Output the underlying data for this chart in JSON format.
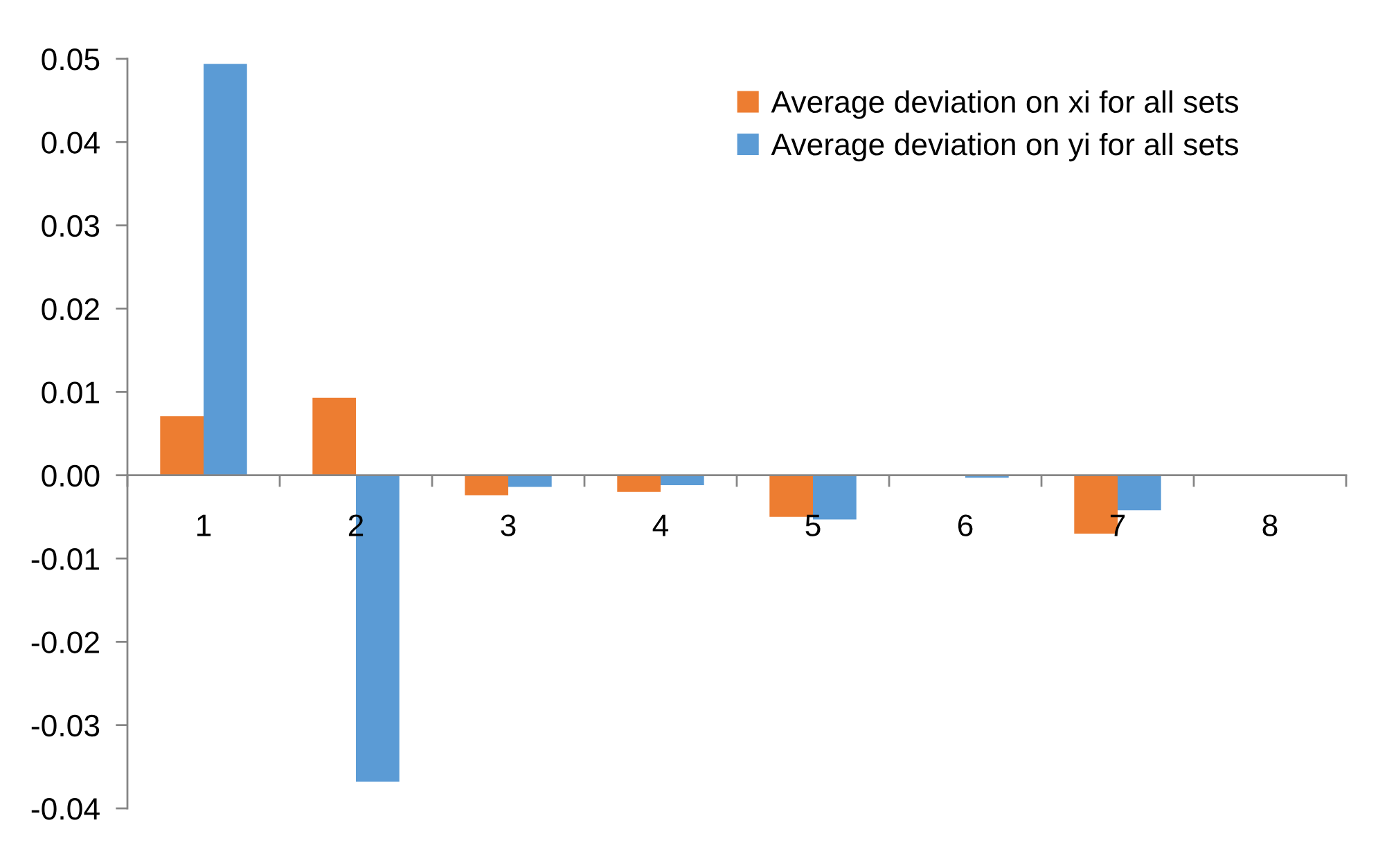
{
  "chart_data": {
    "type": "bar",
    "categories": [
      "1",
      "2",
      "3",
      "4",
      "5",
      "6",
      "7",
      "8"
    ],
    "series": [
      {
        "name": "Average deviation on xi for all sets",
        "color": "#ed7d31",
        "values": [
          0.0071,
          0.0093,
          -0.0024,
          -0.002,
          -0.005,
          -0.0001,
          -0.007,
          0
        ]
      },
      {
        "name": "Average deviation on yi for all sets",
        "color": "#5b9bd5",
        "values": [
          0.0494,
          -0.0368,
          -0.0014,
          -0.0012,
          -0.0053,
          -0.0003,
          -0.0042,
          0
        ]
      }
    ],
    "ylim": [
      -0.04,
      0.05
    ],
    "yticks": [
      0.05,
      0.04,
      0.03,
      0.02,
      0.01,
      {
        "value": 0,
        "label": "0.00"
      },
      -0.01,
      -0.02,
      -0.03,
      -0.04
    ],
    "grid": false,
    "legend": "top right"
  }
}
